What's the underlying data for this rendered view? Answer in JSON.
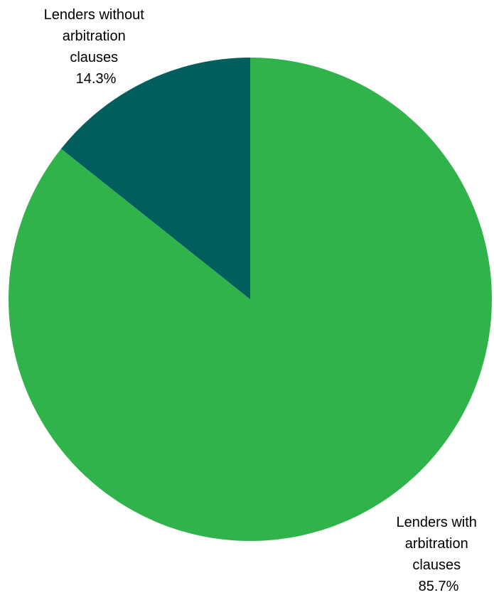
{
  "chart_data": {
    "type": "pie",
    "title": "",
    "slices": [
      {
        "label_lines": [
          "Lenders with",
          "arbitration",
          "clauses"
        ],
        "value_label": "85.7%",
        "value": 85.7,
        "color": "#31B34C"
      },
      {
        "label_lines": [
          "Lenders without",
          "arbitration",
          "clauses"
        ],
        "value_label": "14.3%",
        "value": 14.3,
        "color": "#005E5D"
      }
    ],
    "start": "12 o'clock",
    "direction": "clockwise",
    "legend": "none"
  }
}
